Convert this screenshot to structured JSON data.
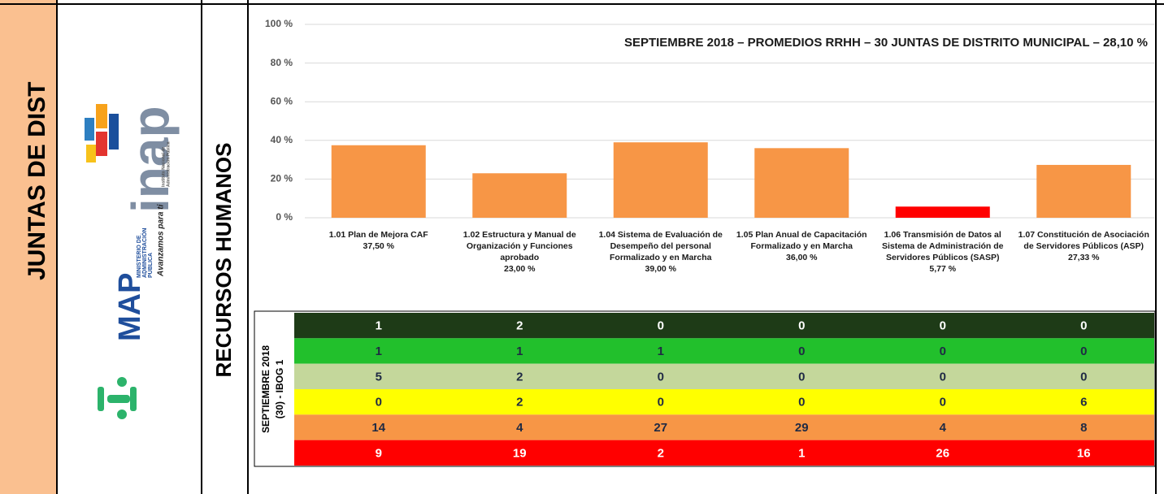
{
  "sidebar": {
    "label": "JUNTAS DE DIST"
  },
  "logos": {
    "inap": {
      "name": "inap",
      "subtitle_lines": [
        "Instituto Nacional de",
        "Administración Pública"
      ]
    },
    "map": {
      "name": "MAP",
      "lines": [
        "MINISTERIO DE",
        "ADMINISTRACIÓN",
        "PÚBLICA"
      ],
      "slogan": "Avanzamos para ti"
    }
  },
  "section": "RECURSOS HUMANOS",
  "chart_data": {
    "type": "bar",
    "title": "SEPTIEMBRE 2018 – PROMEDIOS RRHH – 30 JUNTAS DE DISTRITO MUNICIPAL – 28,10 %",
    "categories": [
      "1.01 Plan de Mejora CAF",
      "1.02 Estructura y Manual de Organización y Funciones aprobado",
      "1.04 Sistema de Evaluación de Desempeño del personal Formalizado y en Marcha",
      "1.05 Plan Anual de Capacitación Formalizado y en Marcha",
      "1.06 Transmisión de Datos al Sistema de Administración de Servidores Públicos (SASP)",
      "1.07 Constitución de Asociación de Servidores Públicos (ASP)"
    ],
    "values": [
      37.5,
      23,
      39,
      36,
      5.77,
      27.33
    ],
    "value_labels": [
      "37,50 %",
      "23,00 %",
      "39,00 %",
      "36,00 %",
      "5,77 %",
      "27,33 %"
    ],
    "colors": [
      "#f79646",
      "#f79646",
      "#f79646",
      "#f79646",
      "#ff0000",
      "#f79646"
    ],
    "ylim": [
      0,
      100
    ],
    "yticks": [
      {
        "value": 0,
        "label": "0 %"
      },
      {
        "value": 20,
        "label": "20 %"
      },
      {
        "value": 40,
        "label": "40 %"
      },
      {
        "value": 60,
        "label": "60 %"
      },
      {
        "value": 80,
        "label": "80 %"
      },
      {
        "value": 100,
        "label": "100 %"
      }
    ],
    "grid": true
  },
  "table": {
    "label_lines": [
      "SEPTIEMBRE 2018",
      "(30) - IBOG 1"
    ],
    "rows": [
      {
        "fill": "#1e3b17",
        "text_color": "#ffffff",
        "values": [
          "1",
          "2",
          "0",
          "0",
          "0",
          "0"
        ]
      },
      {
        "fill": "#22c02c",
        "text_color": "#1f2a44",
        "values": [
          "1",
          "1",
          "1",
          "0",
          "0",
          "0"
        ]
      },
      {
        "fill": "#c4d79b",
        "text_color": "#1f2a44",
        "values": [
          "5",
          "2",
          "0",
          "0",
          "0",
          "0"
        ]
      },
      {
        "fill": "#ffff00",
        "text_color": "#1f2a44",
        "values": [
          "0",
          "2",
          "0",
          "0",
          "0",
          "6"
        ]
      },
      {
        "fill": "#f79646",
        "text_color": "#1f2a44",
        "values": [
          "14",
          "4",
          "27",
          "29",
          "4",
          "8"
        ]
      },
      {
        "fill": "#ff0000",
        "text_color": "#ffffff",
        "values": [
          "9",
          "19",
          "2",
          "1",
          "26",
          "16"
        ]
      }
    ]
  }
}
